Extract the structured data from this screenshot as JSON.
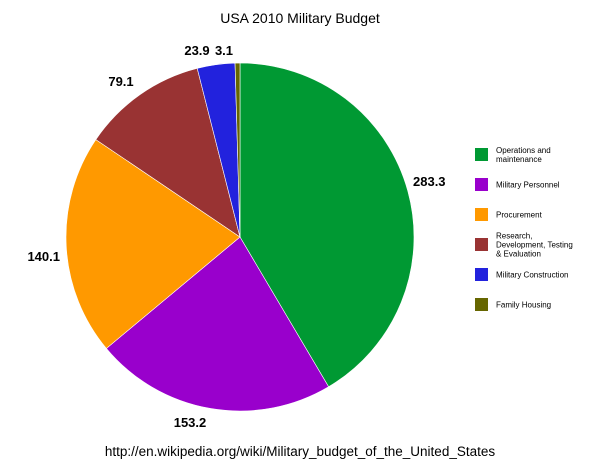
{
  "chart_data": {
    "type": "pie",
    "title": "USA 2010 Military Budget",
    "source_text": "http://en.wikipedia.org/wiki/Military_budget_of_the_United_States",
    "legend_position": "right",
    "slices": [
      {
        "label": "Operations and maintenance",
        "label_lines": [
          "Operations and",
          "maintenance"
        ],
        "value": 283.3,
        "value_label": "283.3",
        "color": "#009933"
      },
      {
        "label": "Military Personnel",
        "label_lines": [
          "Military Personnel"
        ],
        "value": 153.2,
        "value_label": "153.2",
        "color": "#9900cc"
      },
      {
        "label": "Procurement",
        "label_lines": [
          "Procurement"
        ],
        "value": 140.1,
        "value_label": "140.1",
        "color": "#ff9900"
      },
      {
        "label": "Research, Development, Testing & Evaluation",
        "label_lines": [
          "Research,",
          "Development, Testing",
          "& Evaluation"
        ],
        "value": 79.1,
        "value_label": "79.1",
        "color": "#993333"
      },
      {
        "label": "Military Construction",
        "label_lines": [
          "Military Construction"
        ],
        "value": 23.9,
        "value_label": "23.9",
        "color": "#2222dd"
      },
      {
        "label": "Family Housing",
        "label_lines": [
          "Family Housing"
        ],
        "value": 3.1,
        "value_label": "3.1",
        "color": "#666600"
      }
    ]
  }
}
